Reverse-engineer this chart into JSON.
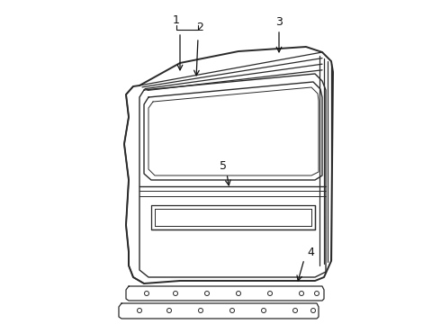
{
  "background_color": "#ffffff",
  "line_color": "#2a2a2a",
  "annotation_color": "#111111",
  "figsize": [
    4.9,
    3.6
  ],
  "dpi": 100
}
